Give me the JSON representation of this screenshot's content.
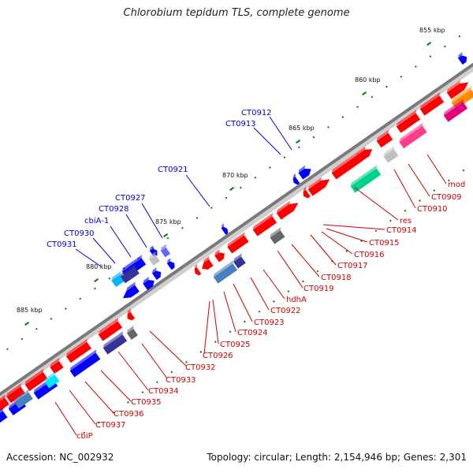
{
  "title": "Chlorobium tepidum TLS, complete genome",
  "footer": {
    "accession_label": "Accession:",
    "accession": "NC_002932",
    "topology_text": "Topology: circular; Length: 2,154,946 bp; Genes: 2,301"
  },
  "colors": {
    "forward": "#ff0000",
    "reverse": "#0000ff",
    "backbone": "#808080",
    "tick": "#008000"
  },
  "scale_ticks": [
    "855 kbp",
    "860 kbp",
    "865 kbp",
    "870 kbp",
    "875 kbp",
    "880 kbp",
    "885 kbp"
  ],
  "blue_labels": [
    "CT0912",
    "CT0913",
    "CT0921",
    "CT0927",
    "CT0928",
    "cbiA-1",
    "CT0930",
    "CT0931"
  ],
  "red_labels": [
    "mod",
    "CT0909",
    "CT0910",
    "res",
    "CT0914",
    "CT0915",
    "CT0916",
    "CT0917",
    "CT0918",
    "CT0919",
    "hdhA",
    "CT0922",
    "CT0923",
    "CT0924",
    "CT0925",
    "CT0926",
    "CT0932",
    "CT0933",
    "CT0934",
    "CT0935",
    "CT0936",
    "CT0937",
    "cbiP"
  ]
}
